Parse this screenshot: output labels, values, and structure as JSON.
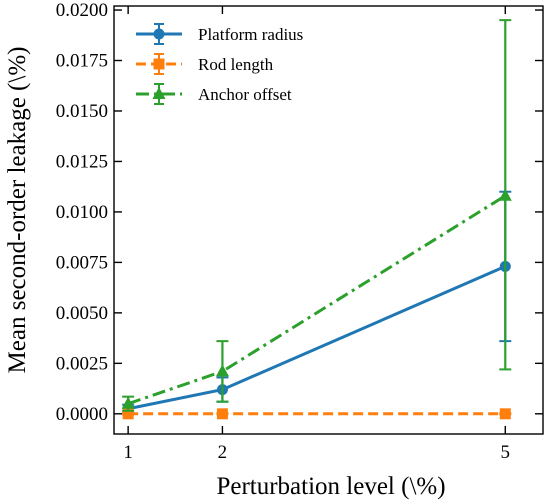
{
  "chart_data": {
    "type": "line",
    "title": "",
    "xlabel": "Perturbation level (\\%)",
    "ylabel": "Mean second-order leakage (\\%)",
    "x": [
      1,
      2,
      5
    ],
    "xticks": [
      1,
      2,
      5
    ],
    "xtick_labels": [
      "1",
      "2",
      "5"
    ],
    "xlim": [
      0.85,
      5.4
    ],
    "ylim": [
      -0.001,
      0.0202
    ],
    "yticks": [
      0.0,
      0.0025,
      0.005,
      0.0075,
      0.01,
      0.0125,
      0.015,
      0.0175,
      0.02
    ],
    "ytick_labels": [
      "0.0000",
      "0.0025",
      "0.0050",
      "0.0075",
      "0.0100",
      "0.0125",
      "0.0150",
      "0.0175",
      "0.0200"
    ],
    "grid": false,
    "legend_position": "top-left",
    "series": [
      {
        "name": "Platform radius",
        "color": "#1f77b4",
        "linestyle": "solid",
        "marker": "circle",
        "values": [
          0.00025,
          0.0012,
          0.0073
        ],
        "error": [
          [
            0.0002,
            0.0006,
            0.0037
          ],
          [
            0.0002,
            0.0006,
            0.0037
          ]
        ]
      },
      {
        "name": "Rod length",
        "color": "#ff7f0e",
        "linestyle": "dashed",
        "marker": "square",
        "values": [
          0.0,
          0.0,
          0.0
        ],
        "error": [
          [
            3e-05,
            3e-05,
            3e-05
          ],
          [
            3e-05,
            3e-05,
            3e-05
          ]
        ]
      },
      {
        "name": "Anchor offset",
        "color": "#2ca02c",
        "linestyle": "dashdot",
        "marker": "triangle",
        "values": [
          0.0005,
          0.0021,
          0.0108
        ],
        "error": [
          [
            0.00035,
            0.0015,
            0.0086
          ],
          [
            0.00035,
            0.0015,
            0.0087
          ]
        ]
      }
    ]
  }
}
